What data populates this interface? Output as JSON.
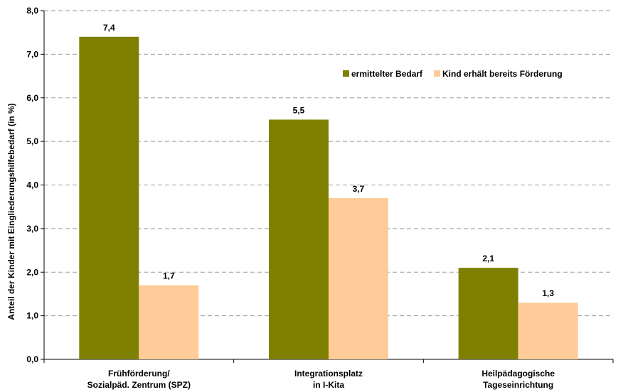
{
  "chart_data": {
    "type": "bar",
    "ylabel": "Anteil der Kinder mit Eingliederungshilfebedarf (in %)",
    "ylim": [
      0,
      8
    ],
    "yticks": [
      "0,0",
      "1,0",
      "2,0",
      "3,0",
      "4,0",
      "5,0",
      "6,0",
      "7,0",
      "8,0"
    ],
    "grid": true,
    "legend_position": "top-right",
    "categories": [
      [
        "Frühförderung/",
        "Sozialpäd. Zentrum (SPZ)"
      ],
      [
        "Integrationsplatz",
        "in I-Kita"
      ],
      [
        "Heilpädagogische",
        "Tageseinrichtung"
      ]
    ],
    "series": [
      {
        "name": "ermittelter Bedarf",
        "color": "#808000",
        "values": [
          7.4,
          5.5,
          2.1
        ],
        "labels": [
          "7,4",
          "5,5",
          "2,1"
        ]
      },
      {
        "name": "Kind erhält bereits Förderung",
        "color": "#FFCC99",
        "values": [
          1.7,
          3.7,
          1.3
        ],
        "labels": [
          "1,7",
          "3,7",
          "1,3"
        ]
      }
    ]
  }
}
